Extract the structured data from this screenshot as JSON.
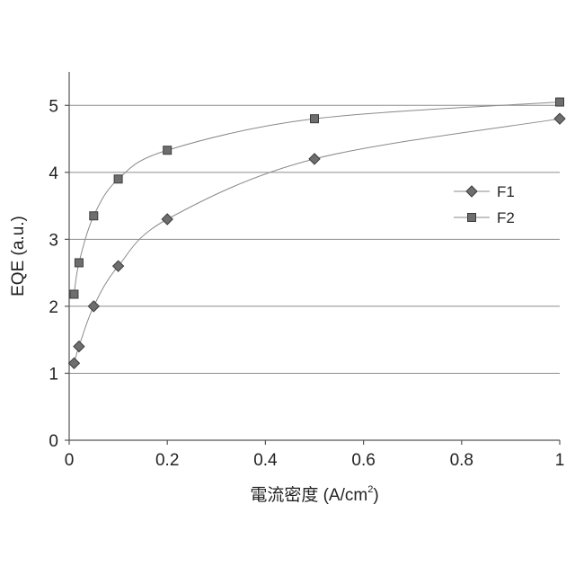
{
  "chart_data": {
    "type": "line",
    "xlabel": "電流密度 (A/cm",
    "xlabel_superscript": "2",
    "xlabel_suffix": ")",
    "ylabel": "EQE (a.u.)",
    "xlim": [
      0,
      1
    ],
    "ylim": [
      0,
      5.5
    ],
    "xticks": [
      0,
      0.2,
      0.4,
      0.6,
      0.8,
      1
    ],
    "xtick_labels": [
      "0",
      "0.2",
      "0.4",
      "0.6",
      "0.8",
      "1"
    ],
    "yticks": [
      0,
      1,
      2,
      3,
      4,
      5
    ],
    "ytick_labels": [
      "0",
      "1",
      "2",
      "3",
      "4",
      "5"
    ],
    "grid": "horizontal",
    "legend_position": "right",
    "series": [
      {
        "name": "F1",
        "marker": "diamond",
        "color": "#6b6b6b",
        "x": [
          0.01,
          0.02,
          0.05,
          0.1,
          0.2,
          0.5,
          1.0
        ],
        "y": [
          1.15,
          1.4,
          2.0,
          2.6,
          3.3,
          4.2,
          4.8
        ]
      },
      {
        "name": "F2",
        "marker": "square",
        "color": "#6b6b6b",
        "x": [
          0.01,
          0.02,
          0.05,
          0.1,
          0.2,
          0.5,
          1.0
        ],
        "y": [
          2.18,
          2.65,
          3.35,
          3.9,
          4.33,
          4.8,
          5.05
        ]
      }
    ]
  }
}
